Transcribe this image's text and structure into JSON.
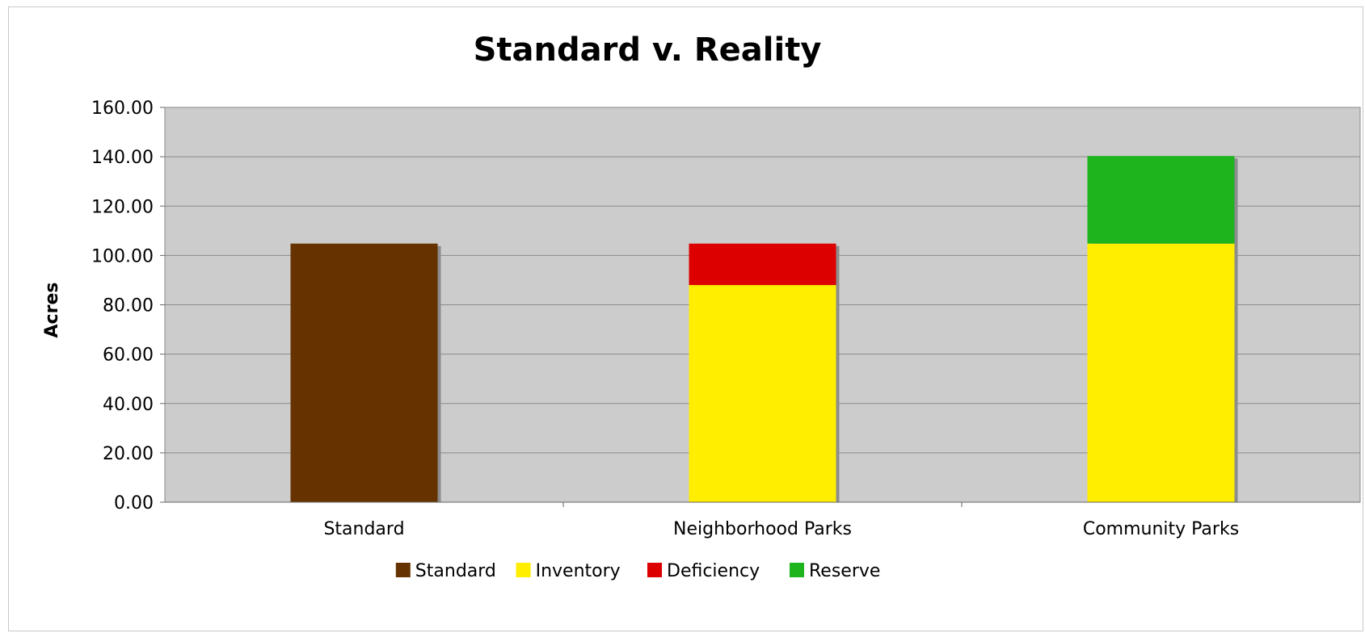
{
  "chart_data": {
    "type": "bar",
    "stacked": true,
    "title": "Standard v. Reality",
    "xlabel": "",
    "ylabel": "Acres",
    "ylim": [
      0,
      160
    ],
    "y_ticks": [
      "0.00",
      "20.00",
      "40.00",
      "60.00",
      "80.00",
      "100.00",
      "120.00",
      "140.00",
      "160.00"
    ],
    "grid": true,
    "legend_position": "bottom",
    "categories": [
      "Standard",
      "Neighborhood Parks",
      "Community Parks"
    ],
    "series": [
      {
        "name": "Standard",
        "color": "#663300",
        "values": [
          104.8,
          0,
          0
        ]
      },
      {
        "name": "Inventory",
        "color": "#ffee00",
        "values": [
          0,
          88,
          104.8
        ]
      },
      {
        "name": "Deficiency",
        "color": "#dd0000",
        "values": [
          0,
          16.8,
          0
        ]
      },
      {
        "name": "Reserve",
        "color": "#1eb41e",
        "values": [
          0,
          0,
          35.5
        ]
      }
    ],
    "plot_background": "#cccccc"
  }
}
